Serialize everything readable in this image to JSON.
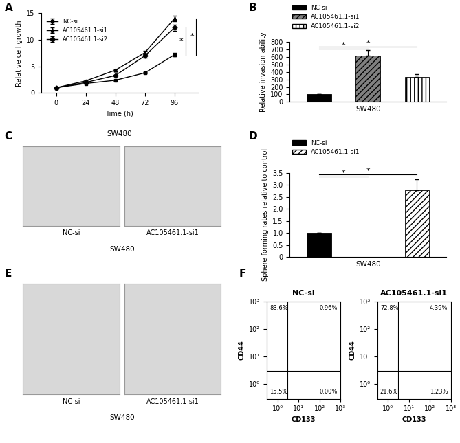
{
  "chart_data": [
    {
      "panel": "A",
      "type": "line",
      "x": [
        0,
        24,
        48,
        72,
        96
      ],
      "series": [
        {
          "name": "NC-si",
          "color": "#000000",
          "marker": "square",
          "values": [
            1,
            1.8,
            2.4,
            3.8,
            7.2
          ],
          "errors": [
            0,
            0.1,
            0.1,
            0.15,
            0.3
          ]
        },
        {
          "name": "AC105461.1-si1",
          "color": "#000000",
          "marker": "triangle",
          "values": [
            1,
            2.3,
            4.3,
            7.6,
            14.0
          ],
          "errors": [
            0,
            0.1,
            0.15,
            0.3,
            0.5
          ]
        },
        {
          "name": "AC105461.1-si2",
          "color": "#000000",
          "marker": "diamond",
          "values": [
            1,
            2.0,
            3.3,
            7.0,
            12.3
          ],
          "errors": [
            0,
            0.1,
            0.15,
            0.3,
            0.6
          ]
        }
      ],
      "x_label": "Time (h)",
      "y_label": "Relative cell growth",
      "subtitle": "SW480",
      "xlim": [
        -12,
        115
      ],
      "xticks": [
        0,
        24,
        48,
        72,
        96
      ],
      "ylim": [
        0,
        15
      ],
      "yticks": [
        0,
        5,
        10,
        15
      ],
      "legend": "upper left",
      "significance": [
        {
          "from": 0,
          "to": 2,
          "label": "*"
        },
        {
          "from": 0,
          "to": 1,
          "label": "*"
        }
      ]
    },
    {
      "panel": "B",
      "type": "bar",
      "categories": [
        null,
        null,
        null
      ],
      "series": [
        {
          "name": "NC-si",
          "color": "#000000",
          "values": [
            100,
            null,
            null
          ],
          "errors": [
            0,
            null,
            null
          ]
        },
        {
          "name": "AC105461.1-si1",
          "color": "#808080",
          "values": [
            null,
            620,
            null
          ],
          "errors": [
            null,
            70,
            null
          ]
        },
        {
          "name": "AC105461.1-si2",
          "color": "#ffffff",
          "values": [
            null,
            null,
            330
          ],
          "errors": [
            null,
            null,
            40
          ]
        }
      ],
      "x_label": "SW480",
      "y_label": "Relative invasion ability",
      "ylim": [
        0,
        800
      ],
      "yticks": [
        0,
        100,
        200,
        300,
        400,
        500,
        600,
        700,
        800
      ],
      "legend": "upper left",
      "significance": [
        {
          "from": 0,
          "to": 1,
          "label": "*"
        },
        {
          "from": 0,
          "to": 2,
          "label": "*"
        }
      ]
    },
    {
      "panel": "C",
      "type": "image",
      "captions": [
        "NC-si",
        "AC105461.1-si1"
      ],
      "subtitle": "SW480"
    },
    {
      "panel": "D",
      "type": "bar",
      "categories": [
        null,
        null,
        null
      ],
      "series": [
        {
          "name": "NC-si",
          "color": "#000000",
          "values": [
            1.0,
            null,
            null
          ],
          "errors": [
            0,
            null,
            null
          ]
        },
        {
          "name": "AC105461.1-si1",
          "color": "#ffffff",
          "values": [
            null,
            null,
            2.78
          ],
          "errors": [
            null,
            null,
            0.45
          ]
        }
      ],
      "x_label": "SW480",
      "y_label": "Sphere forming rates relative to control",
      "ylim": [
        0,
        3.5
      ],
      "yticks": [
        0,
        0.5,
        {
          "value": 1,
          "label": "1.0"
        },
        1.5,
        {
          "value": 2,
          "label": "2.0"
        },
        2.5,
        {
          "value": 3,
          "label": "3.0"
        },
        3.5
      ],
      "legend": "upper left",
      "significance": [
        {
          "from": 0,
          "to": 1,
          "label": "*"
        },
        {
          "from": 0,
          "to": 2,
          "label": "*"
        }
      ]
    },
    {
      "panel": "E",
      "type": "image",
      "captions": [
        "NC-si",
        "AC105461.1-si1"
      ],
      "subtitle": "SW480"
    },
    {
      "panel": "F",
      "type": "flow",
      "title": "NC-si",
      "x_label": "CD133",
      "y_label": "CD44",
      "log": true,
      "xlim": [
        0.3,
        1000
      ],
      "ylim": [
        0.3,
        1000
      ],
      "xticks": [
        {
          "value": 1,
          "label": "10⁰"
        },
        {
          "value": 10,
          "label": "10¹"
        },
        {
          "value": 100,
          "label": "10²"
        },
        {
          "value": 1000,
          "label": "10³"
        }
      ],
      "yticks": [
        {
          "value": 1,
          "label": "10⁰"
        },
        {
          "value": 10,
          "label": "10¹"
        },
        {
          "value": 100,
          "label": "10²"
        },
        {
          "value": 1000,
          "label": "10³"
        }
      ],
      "gate": {
        "x": 3,
        "y": 3
      },
      "quadrants": {
        "values": [
          83.6,
          0.96,
          15.5,
          0.0
        ],
        "value_labels": [
          "83.6%",
          "0.96%",
          "15.5%",
          "0.00%"
        ]
      }
    },
    {
      "type": "flow",
      "title": "AC105461.1-si1",
      "x_label": "CD133",
      "y_label": "CD44",
      "log": true,
      "xlim": [
        0.3,
        1000
      ],
      "ylim": [
        0.3,
        1000
      ],
      "xticks": [
        {
          "value": 1,
          "label": "10⁰"
        },
        {
          "value": 10,
          "label": "10¹"
        },
        {
          "value": 100,
          "label": "10²"
        },
        {
          "value": 1000,
          "label": "10³"
        }
      ],
      "yticks": [
        {
          "value": 1,
          "label": "10⁰"
        },
        {
          "value": 10,
          "label": "10¹"
        },
        {
          "value": 100,
          "label": "10²"
        },
        {
          "value": 1000,
          "label": "10³"
        }
      ],
      "gate": {
        "x": 3,
        "y": 3
      },
      "quadrants": {
        "values": [
          72.8,
          4.39,
          21.6,
          1.23
        ],
        "value_labels": [
          "72.8%",
          "4.39%",
          "21.6%",
          "1.23%"
        ]
      }
    }
  ]
}
